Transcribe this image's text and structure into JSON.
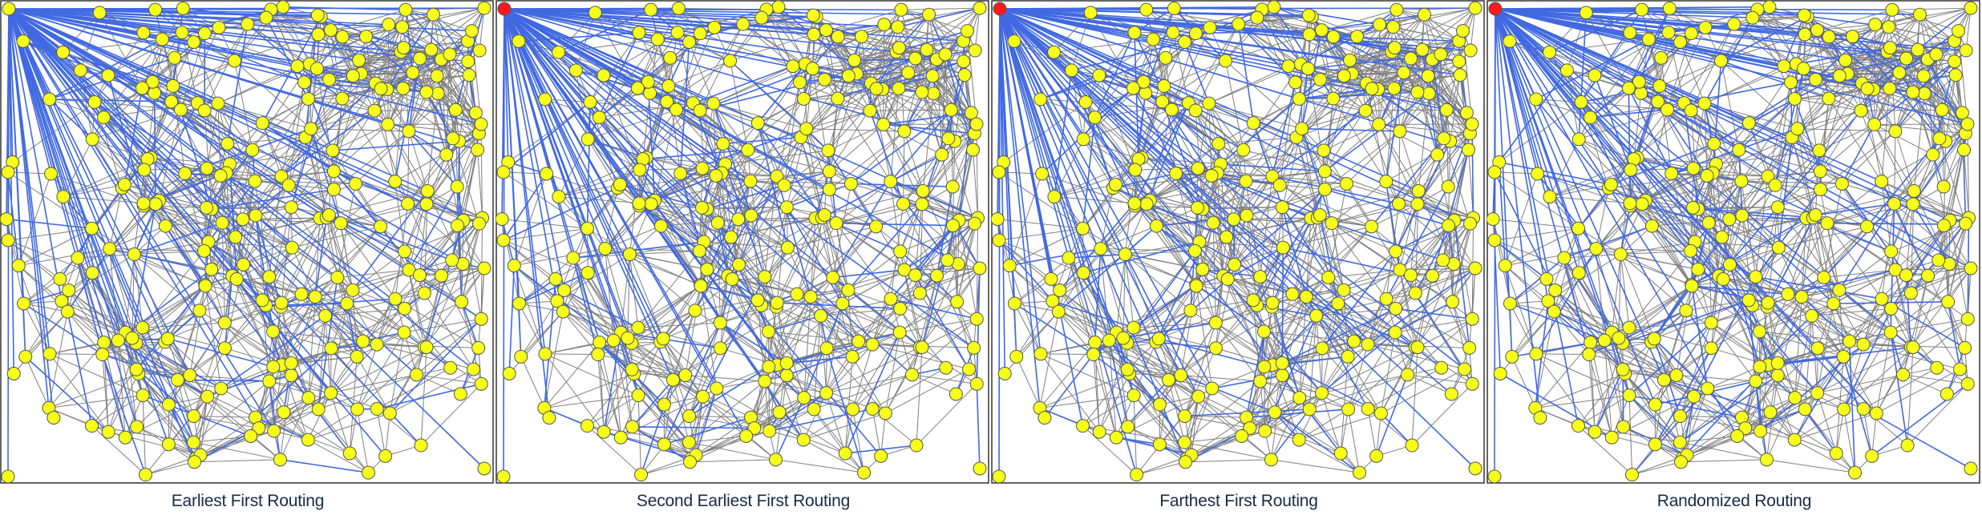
{
  "panels": [
    {
      "caption": "Earliest First Routing"
    },
    {
      "caption": "Second Earliest First Routing"
    },
    {
      "caption": "Farthest First Routing"
    },
    {
      "caption": "Randomized Routing"
    }
  ],
  "colors": {
    "node_fill": "#f6ff1a",
    "node_stroke": "#555555",
    "source_fill": "#ff1a1a",
    "edge": "#808080",
    "route_edge": "#4169e1",
    "frame": "#333333"
  }
}
